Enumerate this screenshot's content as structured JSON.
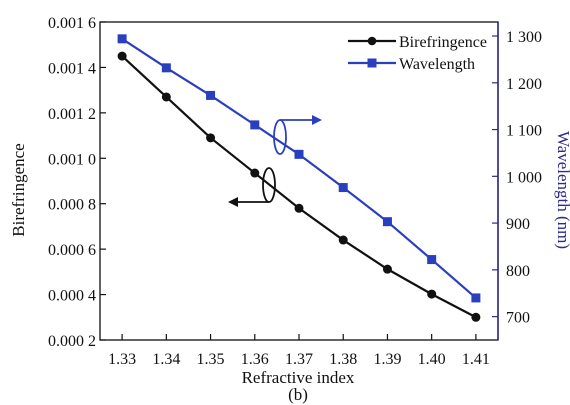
{
  "colors": {
    "birefringence": "#111111",
    "wavelength": "#2a3fc0",
    "right_axis": "#2b2b8c",
    "axis": "#111111"
  },
  "chart_data": {
    "type": "line",
    "x": [
      1.33,
      1.34,
      1.35,
      1.36,
      1.37,
      1.38,
      1.39,
      1.4,
      1.41
    ],
    "x_tick_labels": [
      "1.33",
      "1.34",
      "1.35",
      "1.36",
      "1.37",
      "1.38",
      "1.39",
      "1.40",
      "1.41"
    ],
    "xlabel": "Refractive index",
    "xlim": [
      1.325,
      1.415
    ],
    "ylabel_left": "Birefringence",
    "ylim_left": [
      0.0002,
      0.0016
    ],
    "y_left_ticks": [
      0.0002,
      0.0004,
      0.0006,
      0.0008,
      0.001,
      0.0012,
      0.0014,
      0.0016
    ],
    "y_left_tick_labels": [
      "0.000 2",
      "0.000 4",
      "0.000 6",
      "0.000 8",
      "0.001 0",
      "0.001 2",
      "0.001 4",
      "0.001 6"
    ],
    "ylabel_right": "Wavelength (nm)",
    "ylim_right": [
      650,
      1330
    ],
    "y_right_ticks": [
      700,
      800,
      900,
      1000,
      1100,
      1200,
      1300
    ],
    "y_right_tick_labels": [
      "700",
      "800",
      "900",
      "1 000",
      "1 100",
      "1 200",
      "1 300"
    ],
    "series": [
      {
        "name": "Birefringence",
        "axis": "left",
        "marker": "circle",
        "values": [
          0.00145,
          0.00127,
          0.00109,
          0.000935,
          0.00078,
          0.00064,
          0.000512,
          0.000402,
          0.0003
        ]
      },
      {
        "name": "Wavelength",
        "axis": "right",
        "marker": "square",
        "values": [
          1294,
          1232,
          1173,
          1110,
          1047,
          976,
          903,
          822,
          740
        ]
      }
    ],
    "legend_position": "top-right",
    "grid": false,
    "caption": "(b)"
  }
}
